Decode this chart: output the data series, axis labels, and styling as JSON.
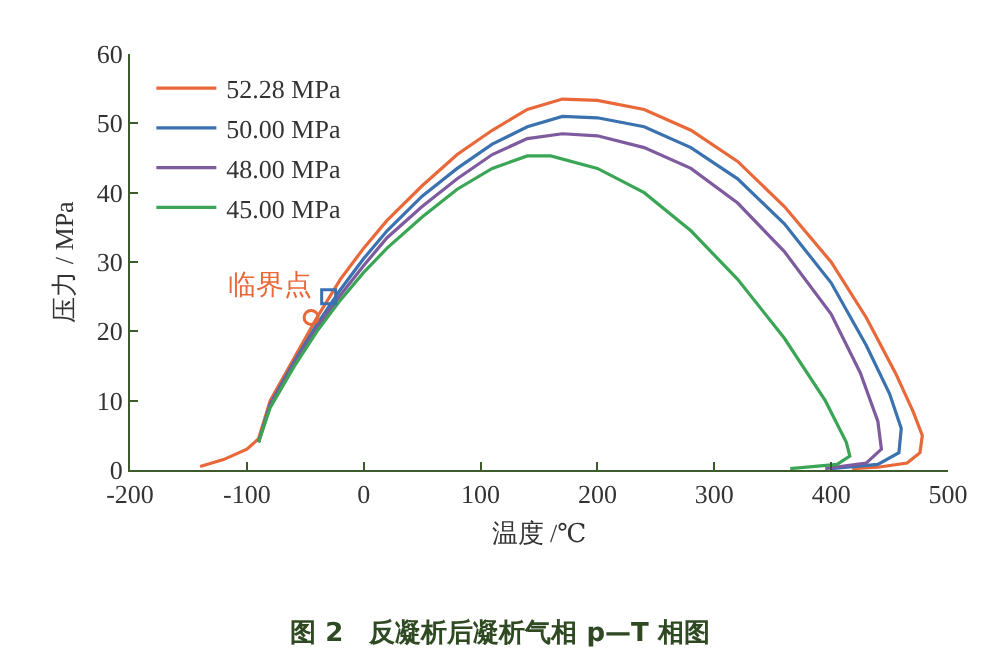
{
  "chart_data": {
    "type": "line",
    "title": "图 2　反凝析后凝析气相 p—T 相图",
    "xlabel": "温度 /℃",
    "ylabel": "压力 / MPa",
    "xlim": [
      -200,
      500
    ],
    "xticks": [
      -200,
      -100,
      0,
      100,
      200,
      300,
      400,
      500
    ],
    "ylim": [
      0,
      60
    ],
    "yticks": [
      0,
      10,
      20,
      30,
      40,
      50,
      60
    ],
    "grid": false,
    "legend": "top left",
    "line_style": "solid",
    "series": [
      {
        "name": "52.28 MPa",
        "color": "#e8683a",
        "x": [
          -140,
          -120,
          -100,
          -90,
          -80,
          -60,
          -40,
          -20,
          0,
          20,
          50,
          80,
          110,
          140,
          170,
          200,
          240,
          280,
          320,
          360,
          400,
          430,
          455,
          470,
          478,
          476,
          465,
          440,
          418
        ],
        "values": [
          0.5,
          1.5,
          3,
          4.5,
          10,
          16,
          22,
          27.5,
          32,
          36,
          41,
          45.5,
          49,
          52,
          53.5,
          53.3,
          52,
          49,
          44.5,
          38,
          30,
          22,
          14,
          8.5,
          5,
          2.5,
          1,
          0.4,
          0.2
        ]
      },
      {
        "name": "50.00 MPa",
        "color": "#3a72b0",
        "x": [
          -90,
          -80,
          -60,
          -40,
          -20,
          0,
          20,
          50,
          80,
          110,
          140,
          170,
          200,
          240,
          280,
          320,
          360,
          400,
          430,
          450,
          460,
          458,
          440,
          400
        ],
        "values": [
          4,
          9.5,
          15.5,
          21,
          26,
          30.5,
          34.5,
          39.5,
          43.5,
          47,
          49.5,
          51,
          50.8,
          49.5,
          46.5,
          42,
          35.5,
          27,
          18,
          11,
          6,
          2.5,
          0.8,
          0.2
        ]
      },
      {
        "name": "48.00 MPa",
        "color": "#7e5a9e",
        "x": [
          -90,
          -80,
          -60,
          -40,
          -20,
          0,
          20,
          50,
          80,
          110,
          140,
          170,
          200,
          240,
          280,
          320,
          360,
          400,
          425,
          440,
          443,
          430,
          395
        ],
        "values": [
          4,
          9.3,
          15.2,
          20.5,
          25.2,
          29.5,
          33.5,
          38,
          42,
          45.5,
          47.8,
          48.5,
          48.2,
          46.5,
          43.5,
          38.5,
          31.5,
          22.5,
          14,
          7,
          3,
          1,
          0.2
        ]
      },
      {
        "name": "45.00 MPa",
        "color": "#3aa655",
        "x": [
          -90,
          -80,
          -60,
          -40,
          -20,
          0,
          20,
          50,
          80,
          110,
          140,
          160,
          200,
          240,
          280,
          320,
          360,
          395,
          413,
          416,
          405,
          365
        ],
        "values": [
          4,
          9,
          14.8,
          20,
          24.5,
          28.5,
          32,
          36.5,
          40.5,
          43.5,
          45.3,
          45.3,
          43.5,
          40,
          34.5,
          27.5,
          19,
          10,
          4,
          2,
          0.8,
          0.2
        ]
      },
      {
        "type": "scatter",
        "x": [
          -45
        ],
        "values": [
          22
        ],
        "color": "#e8683a",
        "marker": "circle"
      },
      {
        "type": "scatter",
        "x": [
          -30
        ],
        "values": [
          25
        ],
        "color": "#3a72b0",
        "marker": "square"
      }
    ],
    "annotations": [
      {
        "text": "临界点",
        "x": -45,
        "y": 22
      }
    ]
  }
}
